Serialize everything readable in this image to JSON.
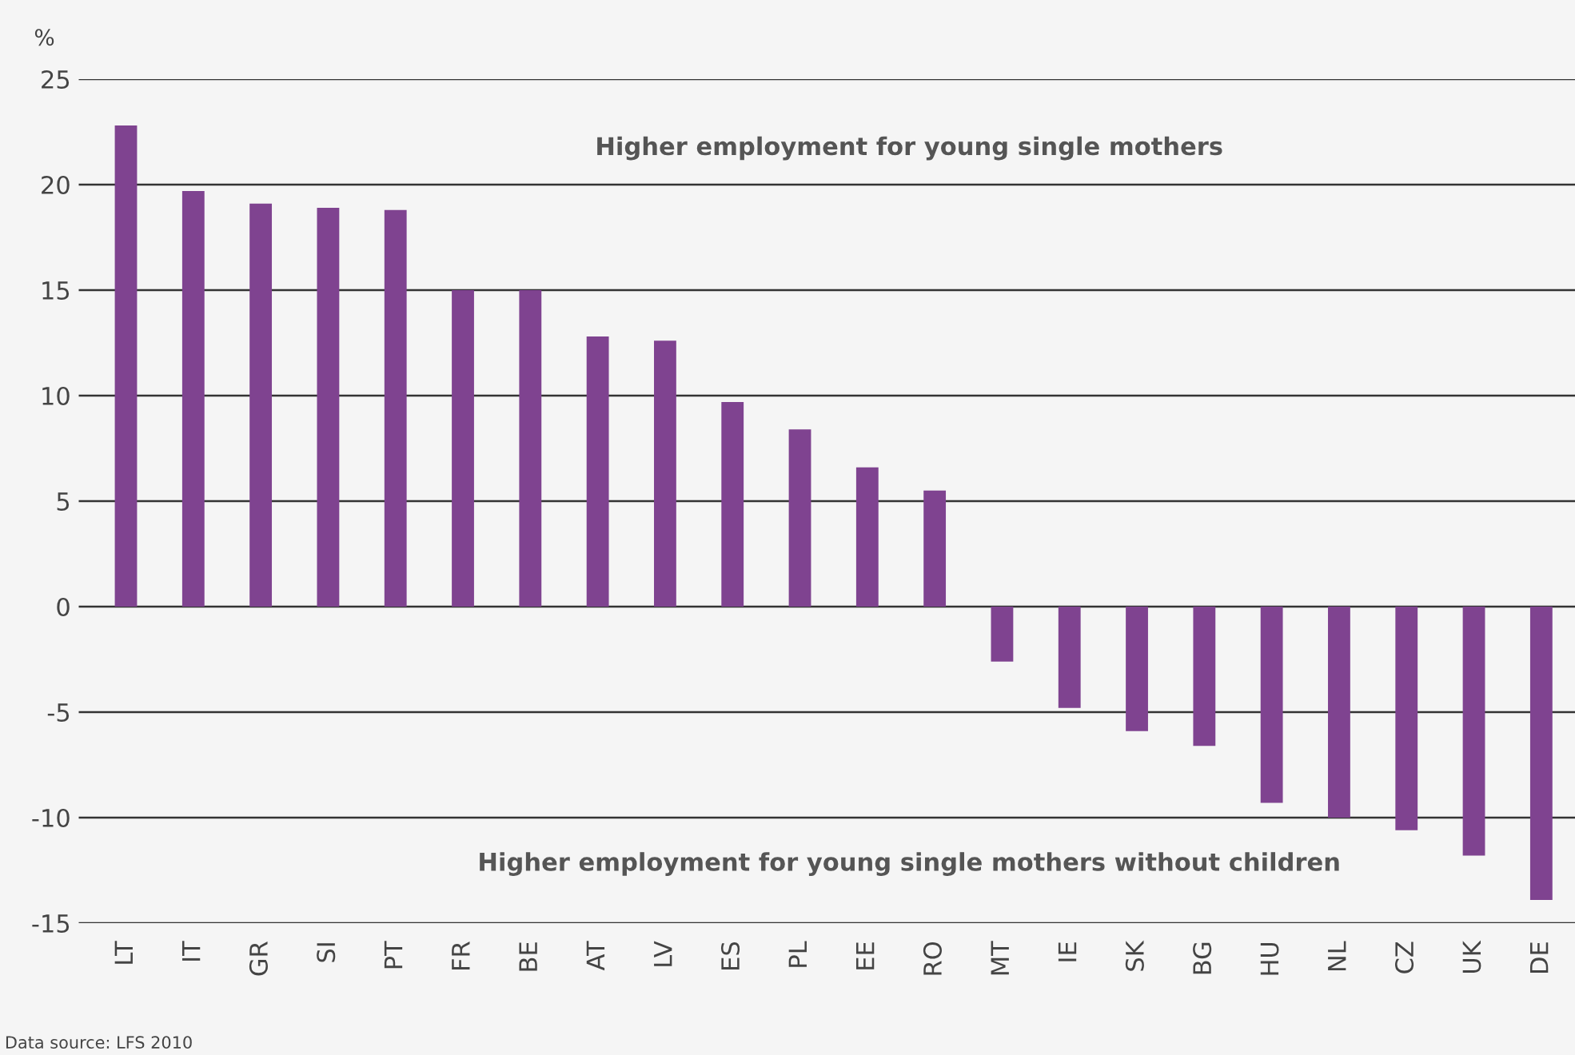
{
  "chart_data": {
    "type": "bar",
    "ylabel": "%",
    "categories": [
      "LT",
      "IT",
      "GR",
      "SI",
      "PT",
      "FR",
      "BE",
      "AT",
      "LV",
      "ES",
      "PL",
      "EE",
      "RO",
      "MT",
      "IE",
      "SK",
      "BG",
      "HU",
      "NL",
      "CZ",
      "UK",
      "DE"
    ],
    "values": [
      22.8,
      19.7,
      19.1,
      18.9,
      18.8,
      15.0,
      15.0,
      12.8,
      12.6,
      9.7,
      8.4,
      6.6,
      5.5,
      -2.6,
      -4.8,
      -5.9,
      -6.6,
      -9.3,
      -10.0,
      -10.6,
      -11.8,
      -13.9
    ],
    "color": "#7f4390",
    "ylim": [
      -15,
      25
    ],
    "yticks": [
      -15,
      -10,
      -5,
      0,
      5,
      10,
      15,
      20,
      25
    ],
    "grid": "y",
    "annotations": [
      "Higher employment for young single mothers",
      "Higher employment for young single mothers without children",
      "Data source: LFS 2010"
    ]
  }
}
